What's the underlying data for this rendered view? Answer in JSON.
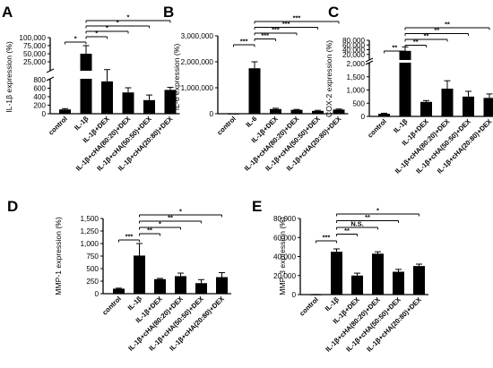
{
  "colors": {
    "bar": "#000000",
    "axis": "#000000",
    "background": "#ffffff"
  },
  "chart_data": [
    {
      "panel": "A",
      "type": "bar",
      "ylabel": "IL-1β expression (%)",
      "scale": "broken",
      "ylim": [
        0,
        100000
      ],
      "categories": [
        "control",
        "IL-1β",
        "IL-1β+DEX",
        "IL-1β+cHA(80:20)+DEX",
        "IL-1β+cHA(50:50)+DEX",
        "IL-1β+cHA(20:80)+DEX"
      ],
      "values": [
        100,
        50000,
        760,
        500,
        320,
        560
      ],
      "errors": [
        20,
        25000,
        60,
        110,
        120,
        60
      ],
      "ticks_lower": [
        "0",
        "200",
        "400",
        "600",
        "800"
      ],
      "ticks_upper": [
        "25,000",
        "50,000",
        "75,000",
        "100,000"
      ],
      "comparisons": [
        {
          "from": 0,
          "to": 1,
          "label": "*"
        },
        {
          "from": 1,
          "to": 2,
          "label": "*"
        },
        {
          "from": 1,
          "to": 3,
          "label": "*"
        },
        {
          "from": 1,
          "to": 4,
          "label": "*"
        },
        {
          "from": 1,
          "to": 5,
          "label": "*"
        }
      ]
    },
    {
      "panel": "B",
      "type": "bar",
      "ylabel": "IL-6 expression (%)",
      "ylim": [
        0,
        3000000
      ],
      "categories": [
        "control",
        "IL-6",
        "IL-1β+DEX",
        "IL-1β+cHA(80:20)+DEX",
        "IL-1β+cHA(50:50)+DEX",
        "IL-1β+cHA(20:80)+DEX"
      ],
      "values": [
        100,
        1750000,
        180000,
        150000,
        110000,
        160000
      ],
      "errors": [
        20,
        250000,
        30000,
        15000,
        20000,
        20000
      ],
      "ticks": [
        "0",
        "1,000,000",
        "2,000,000",
        "3,000,000"
      ],
      "comparisons": [
        {
          "from": 0,
          "to": 1,
          "label": "***"
        },
        {
          "from": 1,
          "to": 2,
          "label": "***"
        },
        {
          "from": 1,
          "to": 3,
          "label": "***"
        },
        {
          "from": 1,
          "to": 4,
          "label": "***"
        },
        {
          "from": 1,
          "to": 5,
          "label": "***"
        }
      ]
    },
    {
      "panel": "C",
      "type": "bar",
      "ylabel": "COX-2 expression (%)",
      "scale": "broken",
      "ylim": [
        0,
        80000
      ],
      "categories": [
        "control",
        "IL-1β",
        "IL-1β+DEX",
        "IL-1β+cHA(80:20)+DEX",
        "IL-1β+cHA(50:50)+DEX",
        "IL-1β+cHA(20:80)+DEX"
      ],
      "values": [
        100,
        35000,
        550,
        1050,
        750,
        700
      ],
      "errors": [
        20,
        17000,
        50,
        300,
        200,
        150
      ],
      "ticks_lower": [
        "0",
        "500",
        "1,000",
        "1,500",
        "2,000"
      ],
      "ticks_upper": [
        "20,000",
        "40,000",
        "60,000",
        "80,000"
      ],
      "comparisons": [
        {
          "from": 0,
          "to": 1,
          "label": "**"
        },
        {
          "from": 1,
          "to": 2,
          "label": "**"
        },
        {
          "from": 1,
          "to": 3,
          "label": "**"
        },
        {
          "from": 1,
          "to": 4,
          "label": "**"
        },
        {
          "from": 1,
          "to": 5,
          "label": "**"
        }
      ]
    },
    {
      "panel": "D",
      "type": "bar",
      "ylabel": "MMP-1 expression (%)",
      "ylim": [
        0,
        1500
      ],
      "categories": [
        "control",
        "IL-1β",
        "IL-1β+DEX",
        "IL-1β+cHA(80:20)+DEX",
        "IL-1β+cHA(50:50)+DEX",
        "IL-1β+cHA(20:80)+DEX"
      ],
      "values": [
        100,
        760,
        290,
        350,
        210,
        330
      ],
      "errors": [
        10,
        240,
        15,
        60,
        70,
        90
      ],
      "ticks": [
        "0",
        "250",
        "500",
        "750",
        "1,000",
        "1,250",
        "1,500"
      ],
      "comparisons": [
        {
          "from": 0,
          "to": 1,
          "label": "***"
        },
        {
          "from": 1,
          "to": 2,
          "label": "**"
        },
        {
          "from": 1,
          "to": 3,
          "label": "*"
        },
        {
          "from": 1,
          "to": 4,
          "label": "**"
        },
        {
          "from": 1,
          "to": 5,
          "label": "*"
        }
      ]
    },
    {
      "panel": "E",
      "type": "bar",
      "ylabel": "MMP-3 expression (%)",
      "ylim": [
        0,
        80000
      ],
      "categories": [
        "control",
        "IL-1β",
        "IL-1β+DEX",
        "IL-1β+cHA(80:20)+DEX",
        "IL-1β+cHA(50:50)+DEX",
        "IL-1β+cHA(20:80)+DEX"
      ],
      "values": [
        100,
        45000,
        20000,
        43000,
        24000,
        30000
      ],
      "errors": [
        20,
        3000,
        2500,
        2000,
        2500,
        2000
      ],
      "ticks": [
        "0",
        "20,000",
        "40,000",
        "60,000",
        "80,000"
      ],
      "comparisons": [
        {
          "from": 0,
          "to": 1,
          "label": "***"
        },
        {
          "from": 1,
          "to": 2,
          "label": "**"
        },
        {
          "from": 1,
          "to": 3,
          "label": "N.S."
        },
        {
          "from": 1,
          "to": 4,
          "label": "**"
        },
        {
          "from": 1,
          "to": 5,
          "label": "*"
        }
      ]
    }
  ]
}
